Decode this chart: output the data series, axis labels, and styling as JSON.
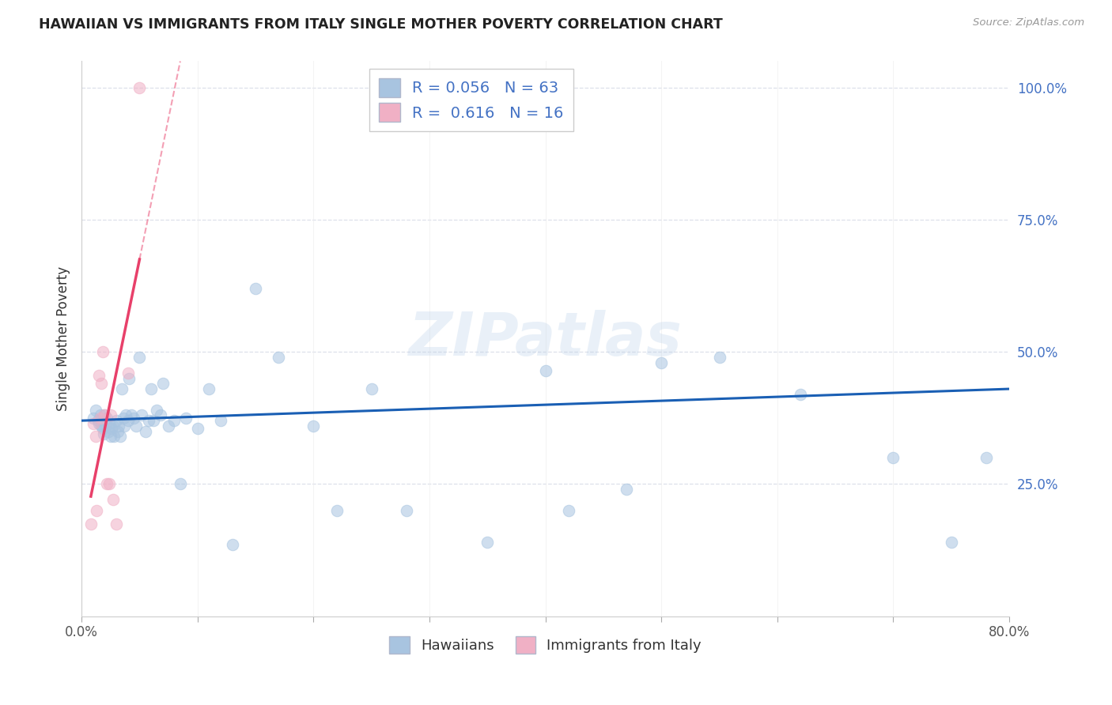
{
  "title": "HAWAIIAN VS IMMIGRANTS FROM ITALY SINGLE MOTHER POVERTY CORRELATION CHART",
  "source": "Source: ZipAtlas.com",
  "ylabel": "Single Mother Poverty",
  "watermark": "ZIPatlas",
  "xlim": [
    0.0,
    0.8
  ],
  "ylim": [
    0.0,
    1.05
  ],
  "yticks": [
    0.25,
    0.5,
    0.75,
    1.0
  ],
  "ytick_labels": [
    "25.0%",
    "50.0%",
    "75.0%",
    "100.0%"
  ],
  "xtick_positions": [
    0.0,
    0.1,
    0.2,
    0.3,
    0.4,
    0.5,
    0.6,
    0.7,
    0.8
  ],
  "blue_R": 0.056,
  "blue_N": 63,
  "pink_R": 0.616,
  "pink_N": 16,
  "blue_color": "#a8c4e0",
  "pink_color": "#f0b0c5",
  "blue_line_color": "#1a5fb4",
  "pink_line_color": "#e8406a",
  "hawaiians_x": [
    0.01,
    0.012,
    0.014,
    0.015,
    0.016,
    0.017,
    0.018,
    0.019,
    0.02,
    0.021,
    0.022,
    0.023,
    0.024,
    0.025,
    0.026,
    0.027,
    0.028,
    0.03,
    0.031,
    0.032,
    0.033,
    0.035,
    0.036,
    0.037,
    0.038,
    0.04,
    0.041,
    0.043,
    0.045,
    0.047,
    0.05,
    0.052,
    0.055,
    0.058,
    0.06,
    0.062,
    0.065,
    0.068,
    0.07,
    0.075,
    0.08,
    0.085,
    0.09,
    0.1,
    0.11,
    0.12,
    0.13,
    0.15,
    0.17,
    0.2,
    0.22,
    0.25,
    0.28,
    0.35,
    0.4,
    0.42,
    0.47,
    0.5,
    0.55,
    0.62,
    0.7,
    0.75,
    0.78
  ],
  "hawaiians_y": [
    0.375,
    0.39,
    0.37,
    0.365,
    0.38,
    0.36,
    0.355,
    0.345,
    0.38,
    0.36,
    0.375,
    0.35,
    0.365,
    0.34,
    0.355,
    0.36,
    0.34,
    0.37,
    0.35,
    0.36,
    0.34,
    0.43,
    0.375,
    0.36,
    0.38,
    0.37,
    0.45,
    0.38,
    0.375,
    0.36,
    0.49,
    0.38,
    0.35,
    0.37,
    0.43,
    0.37,
    0.39,
    0.38,
    0.44,
    0.36,
    0.37,
    0.25,
    0.375,
    0.355,
    0.43,
    0.37,
    0.135,
    0.62,
    0.49,
    0.36,
    0.2,
    0.43,
    0.2,
    0.14,
    0.465,
    0.2,
    0.24,
    0.48,
    0.49,
    0.42,
    0.3,
    0.14,
    0.3
  ],
  "italians_x": [
    0.008,
    0.01,
    0.012,
    0.013,
    0.015,
    0.016,
    0.017,
    0.018,
    0.02,
    0.022,
    0.024,
    0.025,
    0.027,
    0.03,
    0.04,
    0.05
  ],
  "italians_y": [
    0.175,
    0.365,
    0.34,
    0.2,
    0.455,
    0.375,
    0.44,
    0.5,
    0.38,
    0.25,
    0.25,
    0.38,
    0.22,
    0.175,
    0.46,
    1.0
  ],
  "background_color": "#ffffff",
  "grid_color": "#dde0ea",
  "marker_size": 110,
  "marker_alpha": 0.55,
  "marker_lw": 0.8
}
